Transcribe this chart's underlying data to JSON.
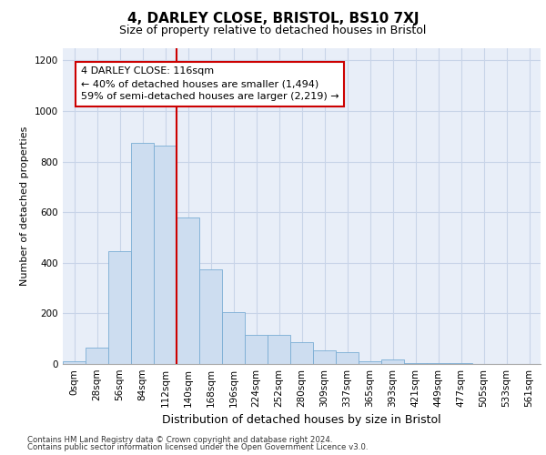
{
  "title_line1": "4, DARLEY CLOSE, BRISTOL, BS10 7XJ",
  "title_line2": "Size of property relative to detached houses in Bristol",
  "xlabel": "Distribution of detached houses by size in Bristol",
  "ylabel": "Number of detached properties",
  "footnote1": "Contains HM Land Registry data © Crown copyright and database right 2024.",
  "footnote2": "Contains public sector information licensed under the Open Government Licence v3.0.",
  "bar_labels": [
    "0sqm",
    "28sqm",
    "56sqm",
    "84sqm",
    "112sqm",
    "140sqm",
    "168sqm",
    "196sqm",
    "224sqm",
    "252sqm",
    "280sqm",
    "309sqm",
    "337sqm",
    "365sqm",
    "393sqm",
    "421sqm",
    "449sqm",
    "477sqm",
    "505sqm",
    "533sqm",
    "561sqm"
  ],
  "bar_values": [
    10,
    65,
    445,
    875,
    865,
    580,
    375,
    205,
    115,
    115,
    85,
    55,
    45,
    10,
    18,
    5,
    5,
    3,
    1,
    1,
    1
  ],
  "bar_color": "#cdddf0",
  "bar_edge_color": "#7aadd4",
  "grid_color": "#c8d4e8",
  "background_color": "#e8eef8",
  "vline_color": "#cc0000",
  "vline_x_index": 4,
  "annotation_text": "4 DARLEY CLOSE: 116sqm\n← 40% of detached houses are smaller (1,494)\n59% of semi-detached houses are larger (2,219) →",
  "annotation_box_facecolor": "white",
  "annotation_box_edgecolor": "#cc0000",
  "ylim": [
    0,
    1250
  ],
  "yticks": [
    0,
    200,
    400,
    600,
    800,
    1000,
    1200
  ],
  "title1_fontsize": 11,
  "title2_fontsize": 9,
  "ylabel_fontsize": 8,
  "xlabel_fontsize": 9,
  "tick_fontsize": 7.5,
  "annot_fontsize": 8
}
